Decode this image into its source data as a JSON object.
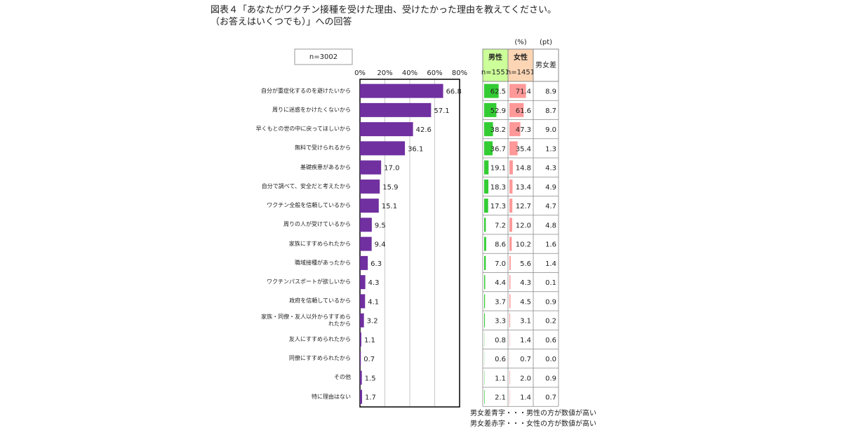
{
  "chart_data": {
    "type": "bar",
    "orientation": "horizontal",
    "title": "図表４「あなたがワクチン接種を受けた理由、受けたかった理由を教えてください。\n（お答えはいくつでも）」への回答",
    "sample_label": "n=3002",
    "categories": [
      "自分が重症化するのを避けたいから",
      "周りに迷惑をかけたくないから",
      "早くもとの世の中に戻ってほしいから",
      "無料で受けられるから",
      "基礎疾患があるから",
      "自分で調べて、安全だと考えたから",
      "ワクチン全般を信頼しているから",
      "周りの人が受けているから",
      "家族にすすめられたから",
      "職域接種があったから",
      "ワクチンパスポートが欲しいから",
      "政府を信頼しているから",
      "家族・同僚・友人以外からすすめら\nれたから",
      "友人にすすめられたから",
      "同僚にすすめられたから",
      "その他",
      "特に理由はない"
    ],
    "values": [
      66.8,
      57.1,
      42.6,
      36.1,
      17.0,
      15.9,
      15.1,
      9.5,
      9.4,
      6.3,
      4.3,
      4.1,
      3.2,
      1.1,
      0.7,
      1.5,
      1.7
    ],
    "value_labels": [
      "66.8",
      "57.1",
      "42.6",
      "36.1",
      "17.0",
      "15.9",
      "15.1",
      "9.5",
      "9.4",
      "6.3",
      "4.3",
      "4.1",
      "3.2",
      "1.1",
      "0.7",
      "1.5",
      "1.7"
    ],
    "color": "#7030a0",
    "xlim": [
      0,
      80
    ],
    "xticks": [
      {
        "value": 0,
        "label": "0%"
      },
      {
        "value": 20,
        "label": "20%"
      },
      {
        "value": 40,
        "label": "40%"
      },
      {
        "value": 60,
        "label": "60%"
      },
      {
        "value": 80,
        "label": "80%"
      }
    ],
    "grid": true
  },
  "table": {
    "unit_labels": [
      "(%)",
      "(pt)"
    ],
    "columns": [
      {
        "name": "男性",
        "n": "n=1551",
        "color": "#33cc33",
        "header_color": "#ccff99",
        "values": [
          62.5,
          52.9,
          38.2,
          36.7,
          19.1,
          18.3,
          17.3,
          7.2,
          8.6,
          7.0,
          4.4,
          3.7,
          3.3,
          0.8,
          0.6,
          1.1,
          2.1
        ],
        "value_labels": [
          "62.5",
          "52.9",
          "38.2",
          "36.7",
          "19.1",
          "18.3",
          "17.3",
          "7.2",
          "8.6",
          "7.0",
          "4.4",
          "3.7",
          "3.3",
          "0.8",
          "0.6",
          "1.1",
          "2.1"
        ]
      },
      {
        "name": "女性",
        "n": "n=1451",
        "color": "#ff9999",
        "header_color": "#fcd5b4",
        "values": [
          71.4,
          61.6,
          47.3,
          35.4,
          14.8,
          13.4,
          12.7,
          12.0,
          10.2,
          5.6,
          4.3,
          4.5,
          3.1,
          1.4,
          0.7,
          2.0,
          1.4
        ],
        "value_labels": [
          "71.4",
          "61.6",
          "47.3",
          "35.4",
          "14.8",
          "13.4",
          "12.7",
          "12.0",
          "10.2",
          "5.6",
          "4.3",
          "4.5",
          "3.1",
          "1.4",
          "0.7",
          "2.0",
          "1.4"
        ]
      }
    ],
    "diff": {
      "name": "男女差",
      "values": [
        8.9,
        8.7,
        9.0,
        1.3,
        4.3,
        4.9,
        4.7,
        4.8,
        1.6,
        1.4,
        0.1,
        0.9,
        0.2,
        0.6,
        0.0,
        0.9,
        0.7
      ],
      "value_labels": [
        "8.9",
        "8.7",
        "9.0",
        "1.3",
        "4.3",
        "4.9",
        "4.7",
        "4.8",
        "1.6",
        "1.4",
        "0.1",
        "0.9",
        "0.2",
        "0.6",
        "0.0",
        "0.9",
        "0.7"
      ]
    },
    "notes": [
      {
        "text": "男女差青字・・・男性の方が数値が高い",
        "color": "#1a6fc0"
      },
      {
        "text": "男女差赤字・・・女性の方が数値が高い",
        "color": "#e0202a"
      }
    ]
  }
}
